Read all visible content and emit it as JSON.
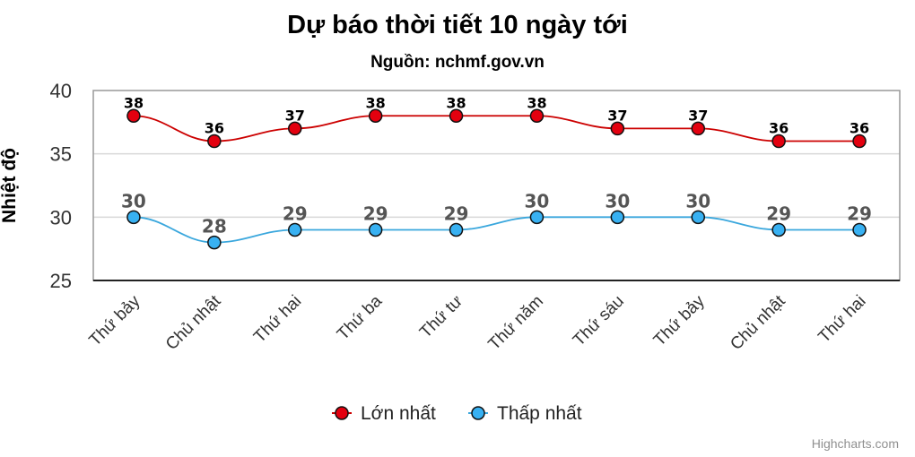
{
  "chart_data": {
    "type": "line",
    "title": "Dự báo thời tiết 10 ngày tới",
    "subtitle": "Nguồn: nchmf.gov.vn",
    "xlabel": "",
    "ylabel": "Nhiệt độ",
    "ylim": [
      25,
      40
    ],
    "yticks": [
      25,
      30,
      35,
      40
    ],
    "grid": true,
    "legend_position": "bottom-center",
    "categories": [
      "Thứ bảy",
      "Chủ nhật",
      "Thứ hai",
      "Thứ ba",
      "Thứ tư",
      "Thứ năm",
      "Thứ sáu",
      "Thứ bảy",
      "Chủ nhật",
      "Thứ hai"
    ],
    "series": [
      {
        "name": "Lớn nhất",
        "color": "#e3000f",
        "line_color": "#cc0000",
        "label_color": "#000000",
        "values": [
          38,
          36,
          37,
          38,
          38,
          38,
          37,
          37,
          36,
          36
        ]
      },
      {
        "name": "Thấp nhất",
        "color": "#38b1f2",
        "line_color": "#3aa7dd",
        "label_color": "#555555",
        "values": [
          30,
          28,
          29,
          29,
          29,
          30,
          30,
          30,
          29,
          29
        ]
      }
    ]
  },
  "credits": "Highcharts.com"
}
